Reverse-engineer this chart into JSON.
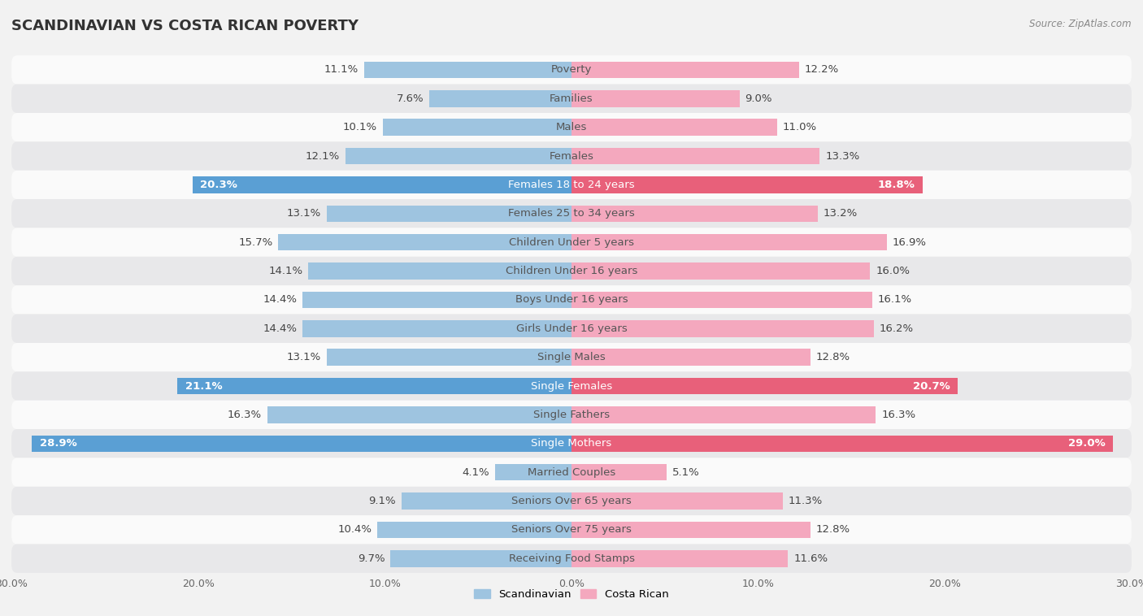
{
  "title": "SCANDINAVIAN VS COSTA RICAN POVERTY",
  "source": "Source: ZipAtlas.com",
  "categories": [
    "Poverty",
    "Families",
    "Males",
    "Females",
    "Females 18 to 24 years",
    "Females 25 to 34 years",
    "Children Under 5 years",
    "Children Under 16 years",
    "Boys Under 16 years",
    "Girls Under 16 years",
    "Single Males",
    "Single Females",
    "Single Fathers",
    "Single Mothers",
    "Married Couples",
    "Seniors Over 65 years",
    "Seniors Over 75 years",
    "Receiving Food Stamps"
  ],
  "scandinavian": [
    11.1,
    7.6,
    10.1,
    12.1,
    20.3,
    13.1,
    15.7,
    14.1,
    14.4,
    14.4,
    13.1,
    21.1,
    16.3,
    28.9,
    4.1,
    9.1,
    10.4,
    9.7
  ],
  "costa_rican": [
    12.2,
    9.0,
    11.0,
    13.3,
    18.8,
    13.2,
    16.9,
    16.0,
    16.1,
    16.2,
    12.8,
    20.7,
    16.3,
    29.0,
    5.1,
    11.3,
    12.8,
    11.6
  ],
  "scandinavian_color": "#9ec4e0",
  "costa_rican_color": "#f4a8be",
  "scandinavian_highlight_color": "#5a9fd4",
  "costa_rican_highlight_color": "#e8607a",
  "highlight_rows": [
    4,
    11,
    13
  ],
  "background_color": "#f2f2f2",
  "row_bg_light": "#fafafa",
  "row_bg_dark": "#e8e8ea",
  "xlim": 30.0,
  "bar_height": 0.58,
  "label_fontsize": 9.5,
  "title_fontsize": 13,
  "source_fontsize": 8.5,
  "axis_label_fontsize": 9
}
